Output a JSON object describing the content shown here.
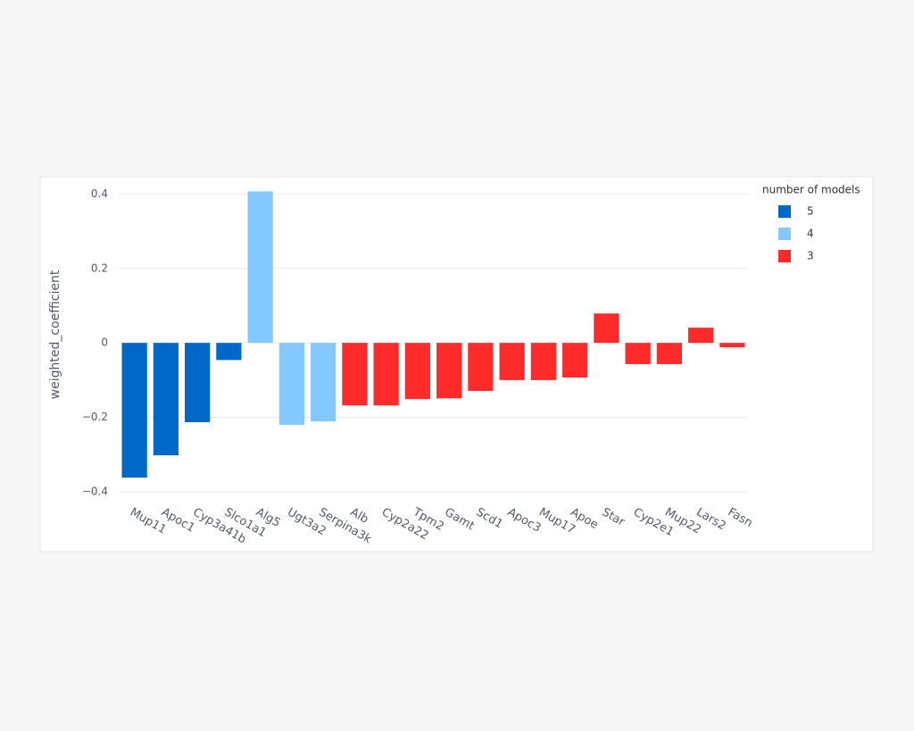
{
  "chart_data": {
    "type": "bar",
    "y_label": "weighted_coefficient",
    "legend_title": "number of models",
    "legend_position": "right",
    "grid": true,
    "categories": [
      "Mup11",
      "Apoc1",
      "Cyp3a41b",
      "Slco1a1",
      "Alg5",
      "Ugt3a2",
      "Serpina3k",
      "Alb",
      "Cyp2a22",
      "Tpm2",
      "Gamt",
      "Scd1",
      "Apoc3",
      "Mup17",
      "Apoe",
      "Star",
      "Cyp2e1",
      "Mup22",
      "Lars2",
      "Fasn"
    ],
    "series": [
      {
        "name": "5",
        "color": "#0068c9",
        "values": [
          -0.362,
          -0.302,
          -0.213,
          -0.046,
          null,
          null,
          null,
          null,
          null,
          null,
          null,
          null,
          null,
          null,
          null,
          null,
          null,
          null,
          null,
          null
        ]
      },
      {
        "name": "4",
        "color": "#83c9ff",
        "values": [
          null,
          null,
          null,
          null,
          0.407,
          -0.22,
          -0.211,
          null,
          null,
          null,
          null,
          null,
          null,
          null,
          null,
          null,
          null,
          null,
          null,
          null
        ]
      },
      {
        "name": "3",
        "color": "#ff2b2b",
        "values": [
          null,
          null,
          null,
          null,
          null,
          null,
          null,
          -0.168,
          -0.168,
          -0.151,
          -0.149,
          -0.129,
          -0.1,
          -0.1,
          -0.093,
          0.079,
          -0.057,
          -0.057,
          0.041,
          -0.012
        ]
      }
    ],
    "ylim": [
      -0.4,
      0.42
    ],
    "yticks": [
      {
        "value": -0.4,
        "label": "−0.4"
      },
      {
        "value": -0.2,
        "label": "−0.2"
      },
      0,
      0.2,
      0.4
    ]
  }
}
